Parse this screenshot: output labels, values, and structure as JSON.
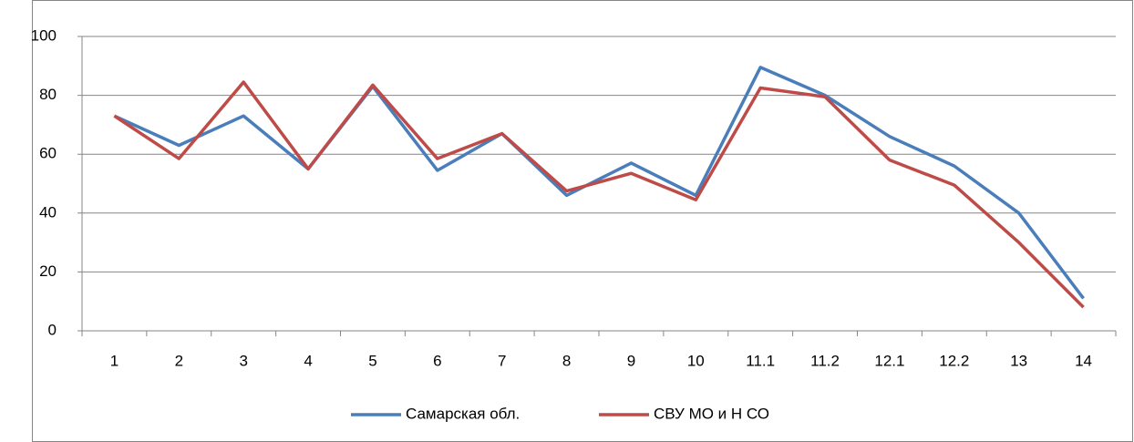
{
  "chart_data": {
    "type": "line",
    "categories": [
      "1",
      "2",
      "3",
      "4",
      "5",
      "6",
      "7",
      "8",
      "9",
      "10",
      "11.1",
      "11.2",
      "12.1",
      "12.2",
      "13",
      "14"
    ],
    "series": [
      {
        "name": "Самарская обл.",
        "color": "#4a7ebb",
        "values": [
          73,
          63,
          73,
          55,
          83,
          54.5,
          67,
          46,
          57,
          46,
          89.5,
          80,
          66,
          56,
          40,
          11
        ]
      },
      {
        "name": "СВУ МО и Н СО",
        "color": "#be4b48",
        "values": [
          73,
          58.5,
          84.5,
          55,
          83.5,
          58.5,
          67,
          47.5,
          53.5,
          44.5,
          82.5,
          79.5,
          58,
          49.5,
          30,
          8
        ]
      }
    ],
    "ylim": [
      0,
      100
    ],
    "yticks": [
      0,
      20,
      40,
      60,
      80,
      100
    ],
    "grid": true,
    "legend": "bottom"
  }
}
